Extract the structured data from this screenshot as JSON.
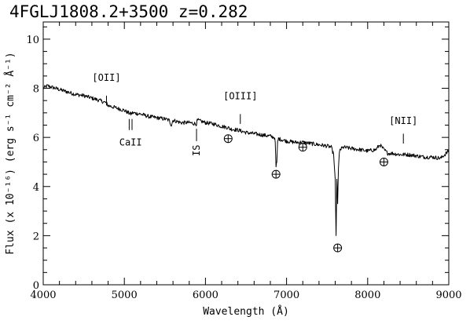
{
  "chart_data": {
    "type": "line",
    "title": "4FGLJ1808.2+3500  z=0.282",
    "xlabel": "Wavelength (Å)",
    "ylabel": "Flux (x 10⁻¹⁶) (erg s⁻¹ cm⁻² Å⁻¹)",
    "xlim": [
      4000,
      9000
    ],
    "ylim": [
      0,
      10.7
    ],
    "x_ticks": [
      4000,
      5000,
      6000,
      7000,
      8000,
      9000
    ],
    "y_ticks": [
      0,
      2,
      4,
      6,
      8,
      10
    ],
    "grid": false,
    "series": [
      {
        "color": "#000000",
        "x": [
          4000,
          4050,
          4100,
          4200,
          4300,
          4400,
          4500,
          4600,
          4700,
          4780,
          4800,
          4850,
          4900,
          5000,
          5050,
          5080,
          5100,
          5200,
          5300,
          5400,
          5500,
          5550,
          5580,
          5600,
          5700,
          5800,
          5890,
          5900,
          5950,
          6000,
          6100,
          6200,
          6280,
          6300,
          6400,
          6500,
          6600,
          6700,
          6800,
          6850,
          6860,
          6870,
          6880,
          6890,
          6900,
          6950,
          7000,
          7100,
          7200,
          7300,
          7400,
          7500,
          7550,
          7580,
          7600,
          7610,
          7620,
          7630,
          7640,
          7650,
          7660,
          7700,
          7800,
          7900,
          8000,
          8100,
          8150,
          8200,
          8250,
          8300,
          8400,
          8500,
          8600,
          8700,
          8800,
          8900,
          8950,
          9000
        ],
        "y": [
          8.0,
          8.1,
          8.05,
          7.95,
          7.85,
          7.75,
          7.7,
          7.6,
          7.5,
          7.4,
          7.3,
          7.25,
          7.2,
          7.1,
          7.0,
          6.95,
          7.0,
          6.95,
          6.85,
          6.8,
          6.75,
          6.7,
          6.5,
          6.7,
          6.6,
          6.6,
          6.55,
          6.7,
          6.65,
          6.6,
          6.55,
          6.45,
          6.4,
          6.35,
          6.3,
          6.2,
          6.15,
          6.1,
          6.05,
          6.0,
          5.8,
          4.8,
          5.0,
          5.8,
          5.95,
          5.9,
          5.85,
          5.8,
          5.8,
          5.75,
          5.7,
          5.65,
          5.6,
          5.3,
          4.3,
          2.0,
          4.3,
          3.3,
          4.8,
          5.3,
          5.5,
          5.6,
          5.55,
          5.5,
          5.45,
          5.5,
          5.7,
          5.5,
          5.35,
          5.35,
          5.3,
          5.3,
          5.25,
          5.2,
          5.2,
          5.15,
          5.3,
          5.45
        ]
      }
    ],
    "annotations": [
      {
        "label": "[OII]",
        "x": 4780,
        "y_tick_top": 7.7,
        "y_tick_bottom": 7.3,
        "label_y": 8.3,
        "position": "above"
      },
      {
        "label": "CaII",
        "x": 5060,
        "x2": 5095,
        "y_tick_top": 6.75,
        "y_tick_bottom": 6.3,
        "label_y": 5.8,
        "position": "below"
      },
      {
        "label": "[OIII]",
        "x": 6430,
        "y_tick_top": 6.95,
        "y_tick_bottom": 6.55,
        "label_y": 7.55,
        "position": "above"
      },
      {
        "label": "IS",
        "x": 5890,
        "y_tick_top": 6.35,
        "y_tick_bottom": 5.85,
        "label_y": 5.7,
        "position": "below-vertical"
      },
      {
        "label": "[NII]",
        "x": 8440,
        "y_tick_top": 6.15,
        "y_tick_bottom": 5.75,
        "label_y": 6.55,
        "position": "above"
      }
    ],
    "telluric_markers": [
      {
        "x": 6280,
        "y": 5.95
      },
      {
        "x": 6870,
        "y": 4.5
      },
      {
        "x": 7200,
        "y": 5.6
      },
      {
        "x": 7630,
        "y": 1.5
      },
      {
        "x": 8200,
        "y": 5.0
      }
    ]
  }
}
